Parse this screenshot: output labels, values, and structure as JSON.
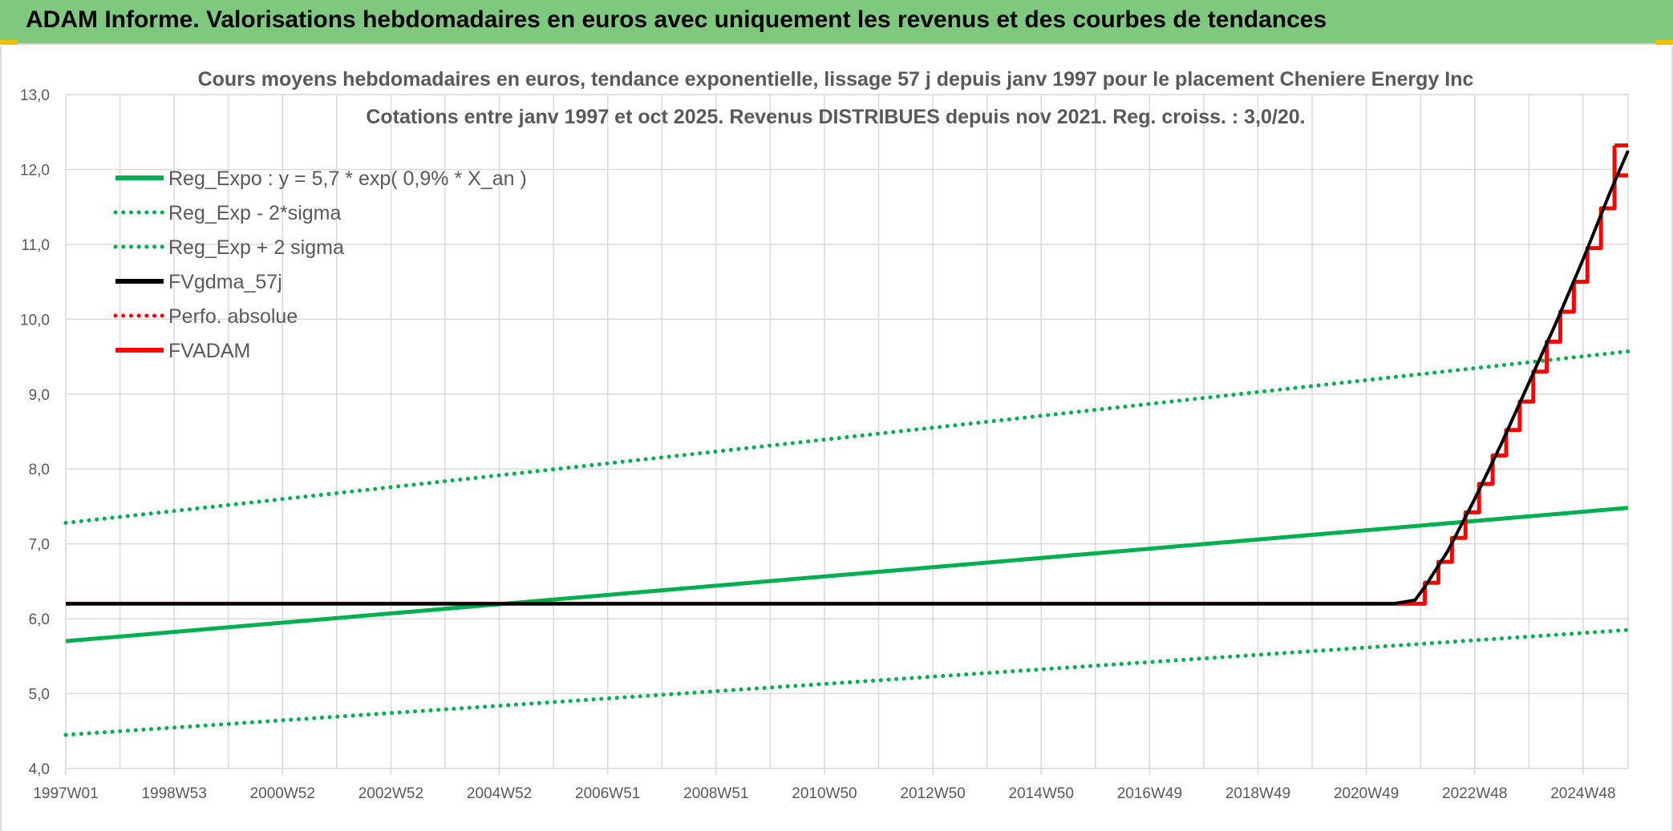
{
  "banner": {
    "title": "ADAM Informe. Valorisations hebdomadaires en euros avec uniquement les revenus et des courbes de tendances"
  },
  "colors": {
    "banner_bg": "#7fc97f",
    "corner": "#f2c200",
    "green": "#00b050",
    "red": "#ff0000",
    "black": "#000000",
    "grid": "#d9d9d9",
    "text": "#595959"
  },
  "chart_data": {
    "type": "line",
    "title": "Cours moyens hebdomadaires en euros, tendance exponentielle, lissage 57 j depuis janv 1997 pour le placement Cheniere Energy Inc",
    "subtitle": "Cotations entre janv 1997 et oct 2025. Revenus DISTRIBUES depuis nov 2021. Reg. croiss. : 3,0/20.",
    "xlabel": "",
    "ylabel": "",
    "ylim": [
      4.0,
      13.0
    ],
    "yticks": [
      "4,0",
      "5,0",
      "6,0",
      "7,0",
      "8,0",
      "9,0",
      "10,0",
      "11,0",
      "12,0",
      "13,0"
    ],
    "xlim": [
      1997.0,
      2025.83
    ],
    "xticks": [
      {
        "label": "1997W01",
        "x": 1997.0
      },
      {
        "label": "1998W53",
        "x": 1999.0
      },
      {
        "label": "2000W52",
        "x": 2001.0
      },
      {
        "label": "2002W52",
        "x": 2003.0
      },
      {
        "label": "2004W52",
        "x": 2005.0
      },
      {
        "label": "2006W51",
        "x": 2007.0
      },
      {
        "label": "2008W51",
        "x": 2009.0
      },
      {
        "label": "2010W50",
        "x": 2011.0
      },
      {
        "label": "2012W50",
        "x": 2013.0
      },
      {
        "label": "2014W50",
        "x": 2015.0
      },
      {
        "label": "2016W49",
        "x": 2017.0
      },
      {
        "label": "2018W49",
        "x": 2019.0
      },
      {
        "label": "2020W49",
        "x": 2021.0
      },
      {
        "label": "2022W48",
        "x": 2023.0
      },
      {
        "label": "2024W48",
        "x": 2025.0
      }
    ],
    "grid": true,
    "legend_position": "top-left",
    "series": [
      {
        "name": "Reg_Expo : y = 5,7 * exp( 0,9% *  X_an )",
        "style": "solid",
        "color": "#00b050",
        "x": [
          1997.0,
          2025.83
        ],
        "y": [
          5.7,
          7.48
        ]
      },
      {
        "name": "Reg_Exp - 2*sigma",
        "style": "dotted",
        "color": "#00b050",
        "x": [
          1997.0,
          2025.83
        ],
        "y": [
          4.45,
          5.85
        ]
      },
      {
        "name": "Reg_Exp + 2 sigma",
        "style": "dotted",
        "color": "#00b050",
        "x": [
          1997.0,
          2025.83
        ],
        "y": [
          7.28,
          9.57
        ]
      },
      {
        "name": "FVgdma_57j",
        "style": "solid",
        "color": "#000000",
        "x": [
          1997.0,
          2021.5,
          2021.9,
          2022.1,
          2022.5,
          2023.0,
          2023.5,
          2024.0,
          2024.5,
          2025.0,
          2025.5,
          2025.83
        ],
        "y": [
          6.2,
          6.2,
          6.25,
          6.45,
          6.9,
          7.6,
          8.35,
          9.15,
          9.95,
          10.8,
          11.7,
          12.25
        ]
      },
      {
        "name": "Perfo. absolue",
        "style": "dotted",
        "color": "#ff0000",
        "x": [],
        "y": []
      },
      {
        "name": "FVADAM",
        "style": "solid",
        "color": "#ff0000",
        "x": [
          1997.0,
          2022.08,
          2022.08,
          2022.33,
          2022.33,
          2022.58,
          2022.58,
          2022.83,
          2022.83,
          2023.08,
          2023.08,
          2023.33,
          2023.33,
          2023.58,
          2023.58,
          2023.83,
          2023.83,
          2024.08,
          2024.08,
          2024.33,
          2024.33,
          2024.58,
          2024.58,
          2024.83,
          2024.83,
          2025.08,
          2025.08,
          2025.33,
          2025.33,
          2025.58,
          2025.58,
          2025.83
        ],
        "y": [
          6.2,
          6.2,
          6.48,
          6.48,
          6.76,
          6.76,
          7.08,
          7.08,
          7.42,
          7.42,
          7.8,
          7.8,
          8.18,
          8.18,
          8.52,
          8.52,
          8.9,
          8.9,
          9.3,
          9.3,
          9.7,
          9.7,
          10.1,
          10.1,
          10.5,
          10.5,
          10.95,
          10.95,
          11.48,
          11.48,
          11.92,
          11.92
        ]
      }
    ],
    "final_point": {
      "x": 2025.83,
      "y": 12.32
    }
  }
}
